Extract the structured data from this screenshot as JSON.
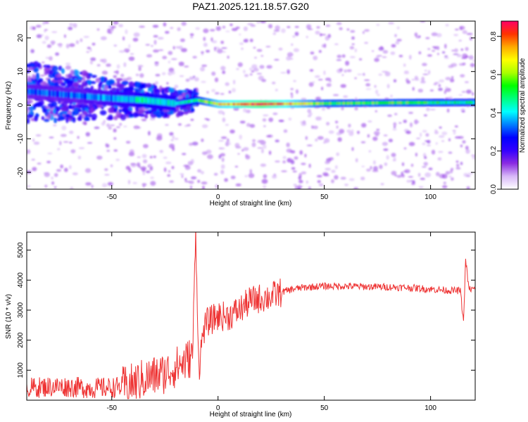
{
  "title": "PAZ1.2025.121.18.57.G20",
  "chart_data": [
    {
      "type": "heatmap",
      "xlabel": "Height of straight line (km)",
      "ylabel": "Frequency (Hz)",
      "xlim": [
        -90,
        121
      ],
      "ylim": [
        -25,
        25
      ],
      "xticks": [
        -50,
        0,
        50,
        100
      ],
      "yticks": [
        -20,
        -10,
        0,
        10,
        20
      ],
      "colorbar": {
        "label": "Normalized spectral amplitude",
        "range": [
          0.0,
          0.88
        ],
        "ticks": [
          0.0,
          0.2,
          0.4,
          0.6,
          0.8
        ],
        "colormap": [
          "#ffffff",
          "#d8b8f8",
          "#8a2be2",
          "#3300ff",
          "#0000ff",
          "#0080ff",
          "#00ffff",
          "#00ff80",
          "#00ff00",
          "#aaff00",
          "#ffff00",
          "#ffaa00",
          "#ff3300",
          "#ff0066"
        ]
      },
      "ridge": {
        "description_points_x": [
          -88,
          -70,
          -50,
          -35,
          -20,
          -10,
          0,
          20,
          50,
          80,
          120
        ],
        "frequency_hz": [
          4,
          3,
          2,
          1.5,
          0.5,
          1.5,
          0.3,
          0.3,
          0.5,
          0.7,
          0.8
        ],
        "amplitude": [
          0.3,
          0.3,
          0.35,
          0.45,
          0.4,
          0.5,
          0.7,
          0.85,
          0.55,
          0.55,
          0.45
        ]
      }
    },
    {
      "type": "line",
      "xlabel": "Height of straight line (km)",
      "ylabel": "SNR (10 * v/v)",
      "xlim": [
        -90,
        121
      ],
      "ylim": [
        0,
        5600
      ],
      "xticks": [
        -50,
        0,
        50,
        100
      ],
      "yticks": [
        1000,
        2000,
        3000,
        4000,
        5000
      ],
      "color": "#ee3333",
      "x": [
        -90,
        -80,
        -70,
        -60,
        -50,
        -45,
        -40,
        -35,
        -30,
        -25,
        -20,
        -15,
        -12,
        -10.5,
        -9,
        -7,
        -5,
        0,
        5,
        10,
        15,
        20,
        25,
        30,
        35,
        40,
        45,
        50,
        60,
        70,
        80,
        90,
        100,
        110,
        114,
        115.5,
        116.5,
        118,
        121
      ],
      "y": [
        400,
        450,
        450,
        400,
        420,
        450,
        550,
        700,
        800,
        900,
        1100,
        1300,
        1500,
        5600,
        1000,
        2300,
        2600,
        2800,
        2800,
        3000,
        3300,
        3400,
        3450,
        3600,
        3700,
        3750,
        3780,
        3800,
        3800,
        3780,
        3770,
        3750,
        3700,
        3650,
        3650,
        2600,
        4700,
        3700,
        3700
      ]
    }
  ]
}
